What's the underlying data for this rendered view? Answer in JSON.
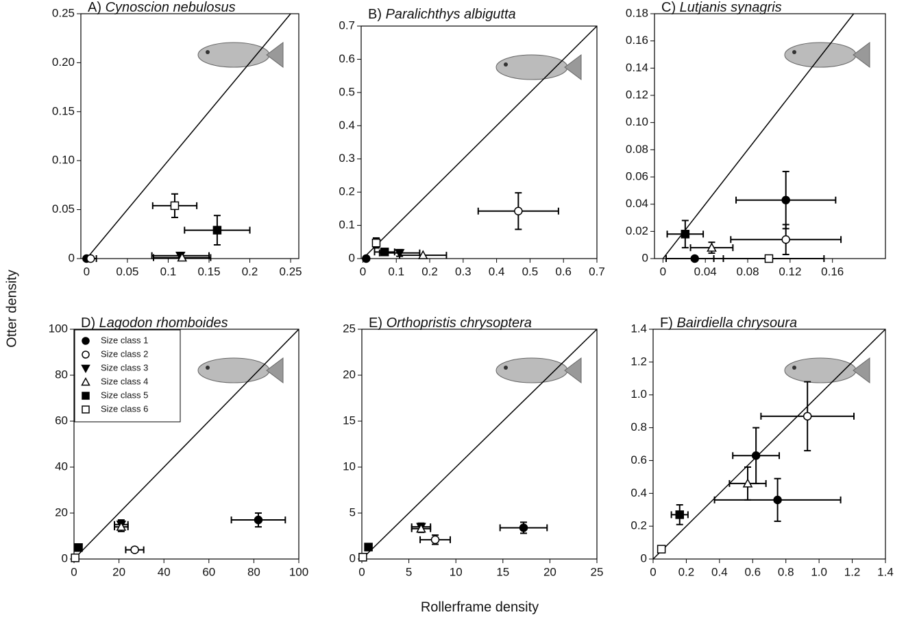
{
  "figure": {
    "xlabel": "Rollerframe density",
    "ylabel": "Otter density",
    "color": "#000000",
    "legend": [
      {
        "name": "Size class 1",
        "marker": "circle",
        "filled": true
      },
      {
        "name": "Size class 2",
        "marker": "circle",
        "filled": false
      },
      {
        "name": "Size class 3",
        "marker": "triangle-down",
        "filled": true
      },
      {
        "name": "Size class 4",
        "marker": "triangle-up",
        "filled": false
      },
      {
        "name": "Size class 5",
        "marker": "square",
        "filled": true
      },
      {
        "name": "Size class 6",
        "marker": "square",
        "filled": false
      }
    ]
  },
  "chart_data": [
    {
      "type": "scatter",
      "label": "A)",
      "title": "Cynoscion nebulosus",
      "identity_line": true,
      "xlim": [
        -0.007,
        0.26
      ],
      "ylim": [
        0,
        0.25
      ],
      "xticks": [
        0,
        0.05,
        0.1,
        0.15,
        0.2,
        0.25
      ],
      "yticks": [
        0,
        0.05,
        {
          "value": 0.1,
          "label": "0.10"
        },
        0.15,
        {
          "value": 0.2,
          "label": "0.20"
        },
        0.25
      ],
      "series": [
        {
          "x": [
            0
          ],
          "y": [
            0
          ],
          "xerr": [
            null
          ],
          "yerr": [
            null
          ]
        },
        {
          "x": [
            0.005
          ],
          "y": [
            0
          ],
          "xerr": [
            0.007
          ],
          "yerr": [
            null
          ]
        },
        {
          "x": [
            0.115
          ],
          "y": [
            0.003
          ],
          "xerr": [
            0.035
          ],
          "yerr": [
            0.002
          ]
        },
        {
          "x": [
            0.117
          ],
          "y": [
            0.001
          ],
          "xerr": [
            0.035
          ],
          "yerr": [
            null
          ]
        },
        {
          "x": [
            0.16
          ],
          "y": [
            0.029
          ],
          "xerr": [
            0.04
          ],
          "yerr": [
            0.015
          ]
        },
        {
          "x": [
            0.108
          ],
          "y": [
            0.054
          ],
          "xerr": [
            0.027
          ],
          "yerr": [
            0.012
          ]
        }
      ]
    },
    {
      "type": "scatter",
      "label": "B)",
      "title": "Paralichthys albigutta",
      "identity_line": true,
      "xlim": [
        -0.005,
        0.7
      ],
      "ylim": [
        0,
        0.7
      ],
      "xticks": [
        0,
        0.1,
        0.2,
        0.3,
        0.4,
        0.5,
        0.6,
        0.7
      ],
      "yticks": [
        0,
        0.1,
        0.2,
        0.3,
        0.4,
        0.5,
        0.6,
        0.7
      ],
      "series": [
        {
          "x": [
            0.01
          ],
          "y": [
            0
          ],
          "xerr": [
            null
          ],
          "yerr": [
            null
          ]
        },
        {
          "x": [
            0.465
          ],
          "y": [
            0.143
          ],
          "xerr": [
            0.12
          ],
          "yerr": [
            0.055
          ]
        },
        {
          "x": [
            0.11
          ],
          "y": [
            0.017
          ],
          "xerr": [
            0.06
          ],
          "yerr": [
            0.01
          ]
        },
        {
          "x": [
            0.18
          ],
          "y": [
            0.01
          ],
          "xerr": [
            0.07
          ],
          "yerr": [
            null
          ]
        },
        {
          "x": [
            0.065
          ],
          "y": [
            0.02
          ],
          "xerr": [
            0.03
          ],
          "yerr": [
            0.01
          ]
        },
        {
          "x": [
            0.04
          ],
          "y": [
            0.047
          ],
          "xerr": [
            0.01
          ],
          "yerr": [
            0.015
          ]
        }
      ]
    },
    {
      "type": "scatter",
      "label": "C)",
      "title": "Lutjanis synagris",
      "identity_line": true,
      "xlim": [
        -0.008,
        0.21
      ],
      "ylim": [
        0,
        0.18
      ],
      "xticks": [
        0,
        0.04,
        0.08,
        0.12,
        0.16
      ],
      "yticks": [
        0,
        0.02,
        0.04,
        0.06,
        0.08,
        {
          "value": 0.1,
          "label": "0.10"
        },
        0.12,
        0.14,
        0.16,
        0.18
      ],
      "series": [
        {
          "x": [
            0.116,
            0.03
          ],
          "y": [
            0.043,
            0
          ],
          "xerr": [
            0.047,
            0.027
          ],
          "yerr": [
            0.021,
            null
          ]
        },
        {
          "x": [
            0.116
          ],
          "y": [
            0.014
          ],
          "xerr": [
            0.052
          ],
          "yerr": [
            0.011
          ]
        },
        {
          "x": [],
          "y": [],
          "xerr": [],
          "yerr": []
        },
        {
          "x": [
            0.046
          ],
          "y": [
            0.008
          ],
          "xerr": [
            0.02
          ],
          "yerr": [
            0.004
          ]
        },
        {
          "x": [
            0.021
          ],
          "y": [
            0.018
          ],
          "xerr": [
            0.017
          ],
          "yerr": [
            0.01
          ]
        },
        {
          "x": [
            0.1
          ],
          "y": [
            0
          ],
          "xerr": [
            0.052
          ],
          "yerr": [
            null
          ]
        }
      ]
    },
    {
      "type": "scatter",
      "label": "D)",
      "title": "Lagodon rhomboides",
      "identity_line": true,
      "legend_loc": "upper left",
      "xlim": [
        0,
        100
      ],
      "ylim": [
        0,
        100
      ],
      "xticks": [
        0,
        20,
        40,
        60,
        80,
        100
      ],
      "yticks": [
        0,
        20,
        40,
        60,
        80,
        100
      ],
      "series": [
        {
          "x": [
            82
          ],
          "y": [
            17
          ],
          "xerr": [
            12
          ],
          "yerr": [
            3
          ]
        },
        {
          "x": [
            27
          ],
          "y": [
            4
          ],
          "xerr": [
            4
          ],
          "yerr": [
            1
          ]
        },
        {
          "x": [
            21
          ],
          "y": [
            15
          ],
          "xerr": [
            3
          ],
          "yerr": [
            2
          ]
        },
        {
          "x": [
            21
          ],
          "y": [
            14
          ],
          "xerr": [
            3
          ],
          "yerr": [
            2
          ]
        },
        {
          "x": [
            2
          ],
          "y": [
            5
          ],
          "xerr": [
            1
          ],
          "yerr": [
            1
          ]
        },
        {
          "x": [
            0.5
          ],
          "y": [
            0.5
          ],
          "xerr": [
            null
          ],
          "yerr": [
            null
          ]
        }
      ]
    },
    {
      "type": "scatter",
      "label": "E)",
      "title": "Orthopristis chrysoptera",
      "identity_line": true,
      "xlim": [
        0,
        25
      ],
      "ylim": [
        0,
        25
      ],
      "xticks": [
        0,
        5,
        10,
        15,
        20,
        25
      ],
      "yticks": [
        0,
        5,
        10,
        15,
        20,
        25
      ],
      "series": [
        {
          "x": [
            17.2
          ],
          "y": [
            3.4
          ],
          "xerr": [
            2.5
          ],
          "yerr": [
            0.6
          ]
        },
        {
          "x": [
            7.8
          ],
          "y": [
            2.1
          ],
          "xerr": [
            1.6
          ],
          "yerr": [
            0.5
          ]
        },
        {
          "x": [
            6.3
          ],
          "y": [
            3.5
          ],
          "xerr": [
            1
          ],
          "yerr": [
            0.4
          ]
        },
        {
          "x": [
            6.3
          ],
          "y": [
            3.3
          ],
          "xerr": [
            1
          ],
          "yerr": [
            0.4
          ]
        },
        {
          "x": [
            0.7
          ],
          "y": [
            1.3
          ],
          "xerr": [
            null
          ],
          "yerr": [
            0.2
          ]
        },
        {
          "x": [
            0.1
          ],
          "y": [
            0.2
          ],
          "xerr": [
            null
          ],
          "yerr": [
            null
          ]
        }
      ]
    },
    {
      "type": "scatter",
      "label": "F)",
      "title": "Bairdiella chrysoura",
      "identity_line": true,
      "xlim": [
        0,
        1.4
      ],
      "ylim": [
        0,
        1.4
      ],
      "xticks": [
        0,
        0.2,
        0.4,
        0.6,
        0.8,
        {
          "value": 1,
          "label": "1.0"
        },
        1.2,
        1.4
      ],
      "yticks": [
        0,
        0.2,
        0.4,
        0.6,
        0.8,
        {
          "value": 1,
          "label": "1.0"
        },
        1.2,
        1.4
      ],
      "series": [
        {
          "x": [
            0.62,
            0.75
          ],
          "y": [
            0.63,
            0.36
          ],
          "xerr": [
            0.14,
            0.38
          ],
          "yerr": [
            0.17,
            0.13
          ]
        },
        {
          "x": [
            0.93
          ],
          "y": [
            0.87
          ],
          "xerr": [
            0.28
          ],
          "yerr": [
            0.21
          ]
        },
        {
          "x": [],
          "y": [],
          "xerr": [],
          "yerr": []
        },
        {
          "x": [
            0.57
          ],
          "y": [
            0.46
          ],
          "xerr": [
            0.11
          ],
          "yerr": [
            0.1
          ]
        },
        {
          "x": [
            0.16
          ],
          "y": [
            0.27
          ],
          "xerr": [
            0.05
          ],
          "yerr": [
            0.06
          ]
        },
        {
          "x": [
            0.05
          ],
          "y": [
            0.06
          ],
          "xerr": [
            null
          ],
          "yerr": [
            null
          ]
        }
      ]
    }
  ]
}
